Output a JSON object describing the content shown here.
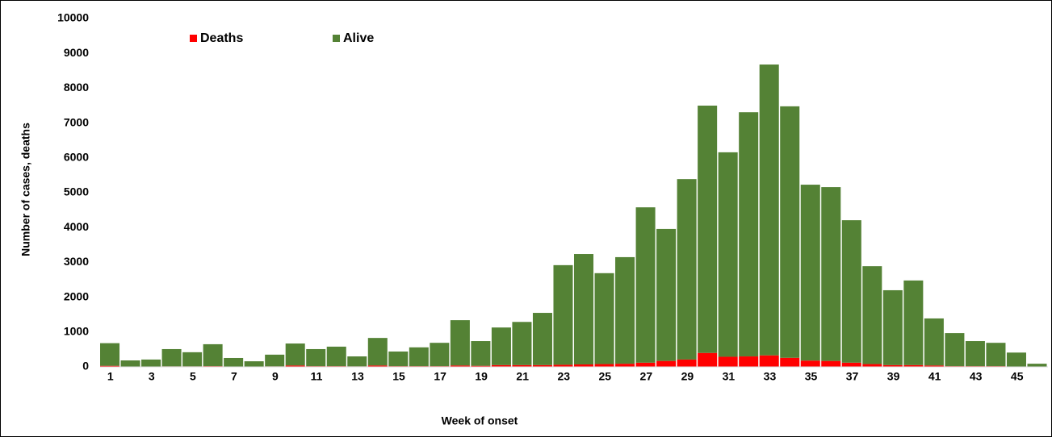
{
  "chart_data": {
    "type": "stacked_bar",
    "x_label": "Week of onset",
    "y_label": "Number of cases, deaths",
    "categories": [
      "1",
      null,
      "3",
      null,
      "5",
      null,
      "7",
      null,
      "9",
      null,
      "11",
      null,
      "13",
      null,
      "15",
      null,
      "17",
      null,
      "19",
      null,
      "21",
      null,
      "23",
      null,
      "25",
      null,
      "27",
      null,
      "29",
      null,
      "31",
      null,
      "33",
      null,
      "35",
      null,
      "37",
      null,
      "39",
      null,
      "41",
      null,
      "43",
      null,
      "45",
      null
    ],
    "series": [
      {
        "name": "Deaths",
        "color": "#ff0000",
        "values": [
          30,
          10,
          10,
          15,
          15,
          20,
          10,
          5,
          15,
          40,
          20,
          20,
          15,
          40,
          20,
          20,
          20,
          40,
          30,
          50,
          50,
          50,
          60,
          70,
          80,
          90,
          120,
          170,
          210,
          400,
          290,
          300,
          330,
          260,
          180,
          170,
          120,
          80,
          50,
          50,
          40,
          20,
          20,
          20,
          10,
          5
        ]
      },
      {
        "name": "Alive",
        "color": "#548235",
        "values": [
          650,
          175,
          200,
          495,
          405,
          630,
          245,
          155,
          335,
          630,
          490,
          560,
          285,
          790,
          420,
          540,
          670,
          1300,
          710,
          1080,
          1240,
          1500,
          2860,
          3170,
          2610,
          3060,
          4460,
          3790,
          5180,
          7100,
          5870,
          7010,
          8350,
          7220,
          5050,
          4990,
          4090,
          2810,
          2150,
          2430,
          1350,
          950,
          720,
          670,
          400,
          85
        ]
      }
    ],
    "ylim": [
      0,
      10000
    ],
    "yticks": [
      0,
      1000,
      2000,
      3000,
      4000,
      5000,
      6000,
      7000,
      8000,
      9000,
      10000
    ],
    "grid": false,
    "legend": "top"
  }
}
